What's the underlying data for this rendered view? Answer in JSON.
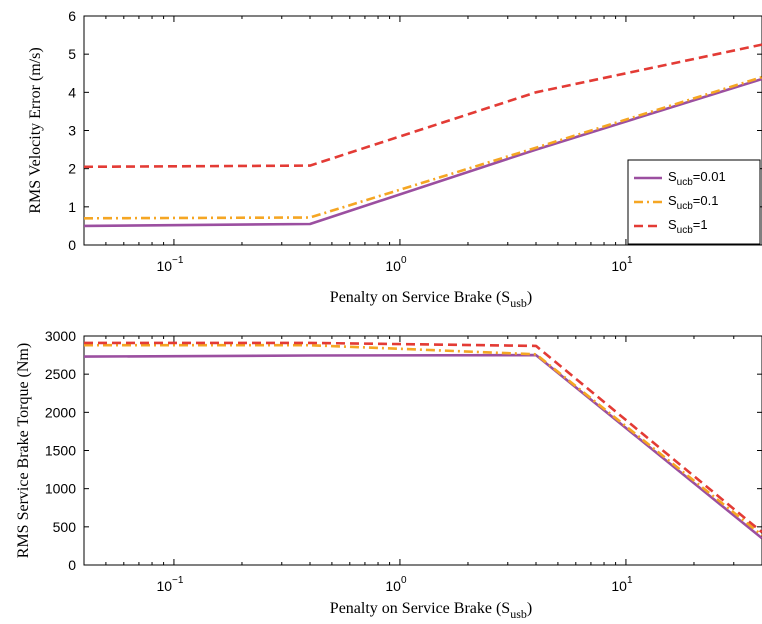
{
  "chart_data": [
    {
      "type": "line",
      "xscale": "log",
      "xlim": [
        0.04,
        40
      ],
      "ylim": [
        0,
        6
      ],
      "xticks": [
        0.1,
        1,
        10
      ],
      "xtick_labels": [
        {
          "base": "10",
          "exp": "−1"
        },
        {
          "base": "10",
          "exp": "0"
        },
        {
          "base": "10",
          "exp": "1"
        }
      ],
      "yticks": [
        0,
        1,
        2,
        3,
        4,
        5,
        6
      ],
      "xlabel": {
        "text": "Penalty on Service Brake (S",
        "sub": "usb",
        "close": ")"
      },
      "ylabel": "RMS Velocity Error (m/s)",
      "grid": false,
      "legend": "right",
      "series": [
        {
          "name": {
            "text": "S",
            "sub": "ucb",
            "rest": "=0.01"
          },
          "color": "#9b4fa0",
          "dash": "solid",
          "x": [
            0.04,
            0.4,
            4,
            40
          ],
          "y": [
            0.5,
            0.55,
            2.5,
            4.35
          ]
        },
        {
          "name": {
            "text": "S",
            "sub": "ucb",
            "rest": "=0.1"
          },
          "color": "#f5a623",
          "dash": "dashdot",
          "x": [
            0.04,
            0.4,
            4,
            40
          ],
          "y": [
            0.7,
            0.72,
            2.55,
            4.4
          ]
        },
        {
          "name": {
            "text": "S",
            "sub": "ucb",
            "rest": "=1"
          },
          "color": "#e33b35",
          "dash": "dashed",
          "x": [
            0.04,
            0.4,
            4,
            40
          ],
          "y": [
            2.05,
            2.08,
            4.0,
            5.25
          ]
        }
      ]
    },
    {
      "type": "line",
      "xscale": "log",
      "xlim": [
        0.04,
        40
      ],
      "ylim": [
        0,
        3000
      ],
      "xticks": [
        0.1,
        1,
        10
      ],
      "xtick_labels": [
        {
          "base": "10",
          "exp": "−1"
        },
        {
          "base": "10",
          "exp": "0"
        },
        {
          "base": "10",
          "exp": "1"
        }
      ],
      "yticks": [
        0,
        500,
        1000,
        1500,
        2000,
        2500,
        3000
      ],
      "xlabel": {
        "text": "Penalty on Service Brake (S",
        "sub": "usb",
        "close": ")"
      },
      "ylabel": "RMS Service Brake Torque (Nm)",
      "grid": false,
      "series": [
        {
          "color": "#9b4fa0",
          "dash": "solid",
          "x": [
            0.04,
            0.4,
            4,
            40
          ],
          "y": [
            2730,
            2745,
            2750,
            350
          ]
        },
        {
          "color": "#f5a623",
          "dash": "dashdot",
          "x": [
            0.04,
            0.4,
            4,
            40
          ],
          "y": [
            2880,
            2880,
            2760,
            390
          ]
        },
        {
          "color": "#e33b35",
          "dash": "dashed",
          "x": [
            0.04,
            0.4,
            4,
            40
          ],
          "y": [
            2910,
            2910,
            2870,
            430
          ]
        }
      ]
    }
  ]
}
